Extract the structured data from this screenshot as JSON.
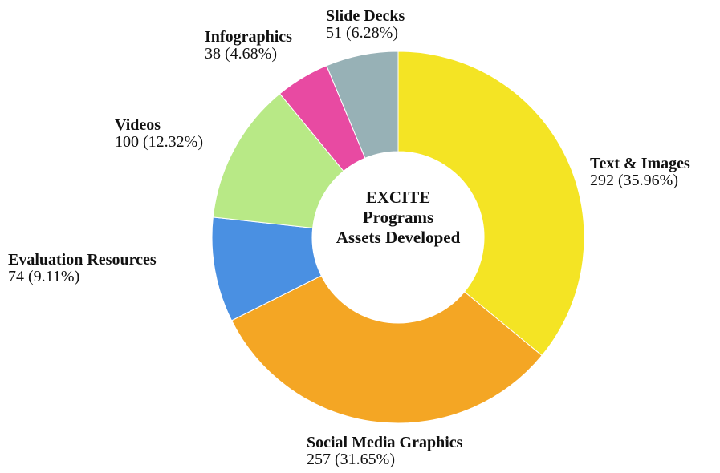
{
  "chart_data": {
    "type": "pie",
    "variant": "donut",
    "center_title": [
      "EXCITE",
      "Programs",
      "Assets Developed"
    ],
    "start_angle_deg": 0,
    "direction": "clockwise",
    "slices": [
      {
        "name": "Text & Images",
        "value": 292,
        "percent_label": "292 (35.96%)",
        "color": "#f4e424"
      },
      {
        "name": "Social Media Graphics",
        "value": 257,
        "percent_label": "257 (31.65%)",
        "color": "#f4a624"
      },
      {
        "name": "Evaluation Resources",
        "value": 74,
        "percent_label": "74 (9.11%)",
        "color": "#4a90e2"
      },
      {
        "name": "Videos",
        "value": 100,
        "percent_label": "100 (12.32%)",
        "color": "#b8e986"
      },
      {
        "name": "Infographics",
        "value": 38,
        "percent_label": "38 (4.68%)",
        "color": "#e84aa2"
      },
      {
        "name": "Slide Decks",
        "value": 51,
        "percent_label": "51 (6.28%)",
        "color": "#97b1b6"
      }
    ]
  }
}
